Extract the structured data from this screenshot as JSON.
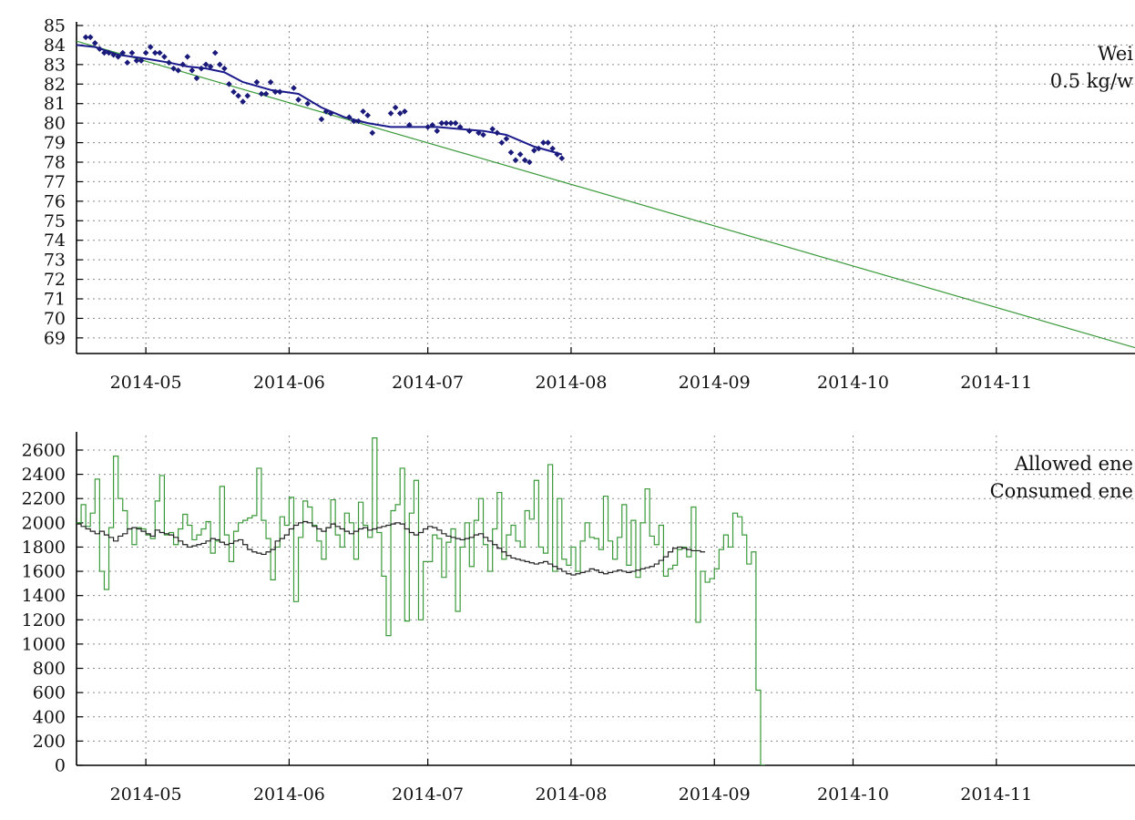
{
  "chart_data": [
    {
      "type": "scatter",
      "title": "",
      "xlabel": "",
      "ylabel": "",
      "xlim": [
        "2014-04-16",
        "2014-12-01"
      ],
      "ylim": [
        68.2,
        85
      ],
      "x_ticks": [
        "2014-05",
        "2014-06",
        "2014-07",
        "2014-08",
        "2014-09",
        "2014-10",
        "2014-11"
      ],
      "y_ticks": [
        69,
        70,
        71,
        72,
        73,
        74,
        75,
        76,
        77,
        78,
        79,
        80,
        81,
        82,
        83,
        84,
        85
      ],
      "grid": true,
      "legend_position": "top-right",
      "legend_entries": [
        "Wei",
        "0.5 kg/w"
      ],
      "colors": {
        "points": "#1a1a7a",
        "smooth": "#1a1a8c",
        "trend": "#3a9a3a"
      },
      "series": [
        {
          "type": "scatter",
          "x": [
            "2014-04-18",
            "2014-04-19",
            "2014-04-20",
            "2014-04-21",
            "2014-04-22",
            "2014-04-23",
            "2014-04-24",
            "2014-04-25",
            "2014-04-26",
            "2014-04-27",
            "2014-04-28",
            "2014-04-29",
            "2014-04-30",
            "2014-05-01",
            "2014-05-02",
            "2014-05-03",
            "2014-05-04",
            "2014-05-05",
            "2014-05-06",
            "2014-05-07",
            "2014-05-08",
            "2014-05-09",
            "2014-05-10",
            "2014-05-11",
            "2014-05-12",
            "2014-05-13",
            "2014-05-14",
            "2014-05-15",
            "2014-05-16",
            "2014-05-17",
            "2014-05-18",
            "2014-05-19",
            "2014-05-20",
            "2014-05-21",
            "2014-05-22",
            "2014-05-23",
            "2014-05-25",
            "2014-05-26",
            "2014-05-27",
            "2014-05-28",
            "2014-05-29",
            "2014-05-30",
            "2014-06-02",
            "2014-06-03",
            "2014-06-05",
            "2014-06-08",
            "2014-06-09",
            "2014-06-10",
            "2014-06-14",
            "2014-06-15",
            "2014-06-16",
            "2014-06-17",
            "2014-06-18",
            "2014-06-19",
            "2014-06-23",
            "2014-06-24",
            "2014-06-25",
            "2014-06-26",
            "2014-06-27",
            "2014-07-01",
            "2014-07-02",
            "2014-07-03",
            "2014-07-04",
            "2014-07-05",
            "2014-07-06",
            "2014-07-07",
            "2014-07-08",
            "2014-07-10",
            "2014-07-12",
            "2014-07-13",
            "2014-07-15",
            "2014-07-16",
            "2014-07-17",
            "2014-07-18",
            "2014-07-19",
            "2014-07-20",
            "2014-07-21",
            "2014-07-22",
            "2014-07-23",
            "2014-07-24",
            "2014-07-25",
            "2014-07-26",
            "2014-07-27",
            "2014-07-28",
            "2014-07-29",
            "2014-07-30"
          ],
          "y": [
            84.4,
            84.4,
            84.1,
            83.8,
            83.6,
            83.6,
            83.5,
            83.4,
            83.6,
            83.1,
            83.6,
            83.2,
            83.2,
            83.6,
            83.9,
            83.6,
            83.6,
            83.4,
            83.1,
            82.8,
            82.7,
            83.0,
            83.4,
            82.7,
            82.3,
            82.8,
            83.0,
            82.9,
            83.6,
            83.0,
            82.8,
            82.0,
            81.6,
            81.4,
            81.1,
            81.4,
            82.1,
            81.5,
            81.5,
            82.1,
            81.6,
            81.6,
            81.8,
            81.2,
            81.0,
            80.2,
            80.6,
            80.5,
            80.3,
            80.1,
            80.1,
            80.6,
            80.4,
            79.5,
            80.5,
            80.8,
            80.5,
            80.6,
            79.9,
            79.8,
            79.9,
            79.6,
            80.0,
            80.0,
            80.0,
            80.0,
            79.8,
            79.6,
            79.5,
            79.4,
            79.7,
            79.5,
            79.0,
            79.2,
            78.5,
            78.1,
            78.4,
            78.1,
            78.0,
            78.6,
            78.7,
            79.0,
            79.0,
            78.7,
            78.4,
            78.2
          ]
        },
        {
          "type": "line",
          "x": [
            "2014-04-16",
            "2014-04-20",
            "2014-04-25",
            "2014-05-01",
            "2014-05-06",
            "2014-05-10",
            "2014-05-14",
            "2014-05-18",
            "2014-05-22",
            "2014-05-28",
            "2014-06-03",
            "2014-06-08",
            "2014-06-13",
            "2014-06-18",
            "2014-06-23",
            "2014-06-28",
            "2014-07-03",
            "2014-07-08",
            "2014-07-13",
            "2014-07-18",
            "2014-07-21",
            "2014-07-24",
            "2014-07-27",
            "2014-07-30"
          ],
          "y": [
            84.0,
            83.9,
            83.5,
            83.3,
            83.1,
            82.9,
            82.8,
            82.6,
            82.1,
            81.7,
            81.5,
            80.8,
            80.3,
            80.0,
            79.8,
            79.8,
            79.8,
            79.7,
            79.6,
            79.4,
            79.1,
            78.8,
            78.6,
            78.4
          ]
        },
        {
          "type": "line",
          "x": [
            "2014-04-16",
            "2014-12-01"
          ],
          "y": [
            84.2,
            68.5
          ]
        }
      ]
    },
    {
      "type": "line",
      "title": "",
      "xlabel": "",
      "ylabel": "",
      "xlim": [
        "2014-04-16",
        "2014-12-01"
      ],
      "ylim": [
        0,
        2720
      ],
      "x_ticks": [
        "2014-05",
        "2014-06",
        "2014-07",
        "2014-08",
        "2014-09",
        "2014-10",
        "2014-11"
      ],
      "y_ticks": [
        0,
        200,
        400,
        600,
        800,
        1000,
        1200,
        1400,
        1600,
        1800,
        2000,
        2200,
        2400,
        2600
      ],
      "grid": true,
      "legend_position": "top-right",
      "legend_entries": [
        "Allowed ene",
        "Consumed ene"
      ],
      "colors": {
        "allowed": "#222222",
        "consumed": "#3a9a3a"
      },
      "series": [
        {
          "type": "step",
          "start": "2014-04-16",
          "values": [
            1990,
            1970,
            1950,
            1930,
            1910,
            1930,
            1900,
            1880,
            1850,
            1890,
            1910,
            1950,
            1960,
            1950,
            1930,
            1910,
            1890,
            1940,
            1920,
            1910,
            1900,
            1880,
            1850,
            1820,
            1800,
            1810,
            1820,
            1830,
            1850,
            1870,
            1860,
            1840,
            1820,
            1830,
            1850,
            1860,
            1820,
            1780,
            1760,
            1750,
            1740,
            1760,
            1780,
            1850,
            1870,
            1900,
            1950,
            1980,
            2000,
            2010,
            2000,
            1970,
            1950,
            1930,
            1960,
            1990,
            1970,
            1950,
            1930,
            1910,
            1930,
            1950,
            1960,
            1940,
            1950,
            1960,
            1970,
            1980,
            1990,
            2000,
            1990,
            1950,
            1920,
            1900,
            1920,
            1950,
            1970,
            1960,
            1940,
            1910,
            1890,
            1880,
            1870,
            1860,
            1870,
            1880,
            1900,
            1910,
            1880,
            1850,
            1820,
            1790,
            1760,
            1730,
            1710,
            1700,
            1690,
            1680,
            1670,
            1660,
            1670,
            1680,
            1660,
            1640,
            1620,
            1600,
            1580,
            1570,
            1580,
            1590,
            1600,
            1620,
            1610,
            1590,
            1580,
            1590,
            1600,
            1610,
            1600,
            1590,
            1600,
            1610,
            1620,
            1630,
            1640,
            1660,
            1690,
            1720,
            1760,
            1790,
            1800,
            1790,
            1780,
            1770,
            1770,
            1760
          ]
        },
        {
          "type": "step",
          "start": "2014-04-16",
          "values": [
            2000,
            2150,
            1970,
            2080,
            2360,
            1600,
            1450,
            1960,
            2550,
            2200,
            2100,
            1950,
            1820,
            1960,
            1950,
            1900,
            1870,
            2180,
            2390,
            1900,
            1920,
            1820,
            1950,
            2070,
            1980,
            1860,
            1900,
            1950,
            2010,
            1750,
            1850,
            2300,
            1900,
            1680,
            1930,
            2000,
            2020,
            2040,
            2060,
            2450,
            2020,
            1870,
            1530,
            1800,
            2050,
            1980,
            2210,
            1350,
            1880,
            2180,
            2130,
            1980,
            1850,
            1700,
            1960,
            2190,
            1900,
            1800,
            2080,
            2000,
            1700,
            2170,
            1980,
            1880,
            2700,
            1920,
            1560,
            1070,
            2100,
            2150,
            2450,
            1190,
            2080,
            2350,
            1200,
            1680,
            1680,
            1900,
            1870,
            1550,
            1840,
            1950,
            1270,
            1800,
            2000,
            1640,
            2020,
            2200,
            1820,
            1600,
            1950,
            2250,
            1700,
            1900,
            1980,
            1850,
            1800,
            2100,
            2030,
            2350,
            1800,
            1750,
            2480,
            1600,
            2200,
            1700,
            1650,
            1800,
            1600,
            1850,
            2000,
            1880,
            1870,
            1780,
            2220,
            1850,
            1700,
            1880,
            2150,
            1650,
            2020,
            1550,
            2000,
            2280,
            1890,
            1820,
            1980,
            1560,
            1620,
            1650,
            1780,
            1800,
            1720,
            2130,
            1180,
            1600,
            1510,
            1540,
            1620,
            1780,
            1900,
            1800,
            2080,
            2050,
            1900,
            1660,
            1760,
            620,
            0
          ]
        }
      ]
    }
  ]
}
